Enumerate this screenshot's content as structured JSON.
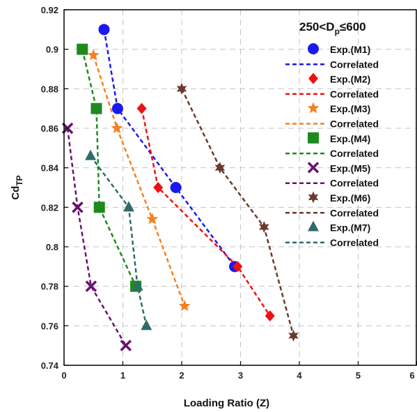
{
  "chart_data": {
    "type": "scatter",
    "xlabel": "Loading Ratio (Z)",
    "ylabel_main": "Cd",
    "ylabel_sub": "TP",
    "xlim": [
      0,
      6
    ],
    "ylim": [
      0.74,
      0.92
    ],
    "x_ticks": [
      "0",
      "1",
      "2",
      "3",
      "4",
      "5",
      "6"
    ],
    "y_ticks": [
      "0.74",
      "0.76",
      "0.78",
      "0.8",
      "0.82",
      "0.84",
      "0.86",
      "0.88",
      "0.9",
      "0.92"
    ],
    "grid": true,
    "legend_position": "top-right",
    "legend_title_main": "250<D",
    "legend_title_sub": "p",
    "legend_title_tail": "≤600",
    "series": [
      {
        "name": "Exp.(M1)",
        "marker": "circle",
        "color": "#1a1aee",
        "points": [
          [
            0.68,
            0.91
          ],
          [
            0.91,
            0.87
          ],
          [
            1.9,
            0.83
          ],
          [
            2.9,
            0.79
          ]
        ],
        "fit_name": "Correlated",
        "fit_color": "#1a1aee",
        "fit": [
          [
            0.68,
            0.91
          ],
          [
            0.91,
            0.87
          ],
          [
            1.9,
            0.83
          ],
          [
            2.9,
            0.79
          ]
        ]
      },
      {
        "name": "Exp.(M2)",
        "marker": "diamond",
        "color": "#ee1111",
        "points": [
          [
            1.32,
            0.87
          ],
          [
            1.6,
            0.83
          ],
          [
            2.95,
            0.79
          ],
          [
            3.5,
            0.765
          ]
        ],
        "fit_name": "Correlated",
        "fit_color": "#ee1111",
        "fit": [
          [
            1.32,
            0.87
          ],
          [
            1.6,
            0.83
          ],
          [
            2.95,
            0.79
          ],
          [
            3.5,
            0.765
          ]
        ]
      },
      {
        "name": "Exp.(M3)",
        "marker": "star",
        "color": "#f58020",
        "points": [
          [
            0.5,
            0.897
          ],
          [
            0.9,
            0.86
          ],
          [
            1.5,
            0.814
          ],
          [
            2.05,
            0.77
          ]
        ],
        "fit_name": "Correlated",
        "fit_color": "#f58020",
        "fit": [
          [
            0.5,
            0.897
          ],
          [
            0.9,
            0.86
          ],
          [
            1.5,
            0.814
          ],
          [
            2.05,
            0.77
          ]
        ]
      },
      {
        "name": "Exp.(M4)",
        "marker": "square",
        "color": "#1e8a1e",
        "points": [
          [
            0.31,
            0.9
          ],
          [
            0.55,
            0.87
          ],
          [
            0.6,
            0.82
          ],
          [
            1.22,
            0.78
          ]
        ],
        "fit_name": "Correlated",
        "fit_color": "#1e8a1e",
        "fit": [
          [
            0.31,
            0.9
          ],
          [
            0.55,
            0.87
          ],
          [
            0.6,
            0.82
          ],
          [
            1.22,
            0.78
          ]
        ]
      },
      {
        "name": "Exp.(M5)",
        "marker": "x",
        "color": "#6a1070",
        "points": [
          [
            0.06,
            0.86
          ],
          [
            0.23,
            0.82
          ],
          [
            0.46,
            0.78
          ],
          [
            1.05,
            0.75
          ]
        ],
        "fit_name": "Correlated",
        "fit_color": "#6a1070",
        "fit": [
          [
            0.06,
            0.86
          ],
          [
            0.23,
            0.82
          ],
          [
            0.46,
            0.78
          ],
          [
            1.05,
            0.75
          ]
        ]
      },
      {
        "name": "Exp.(M6)",
        "marker": "star6",
        "color": "#6b3a2e",
        "points": [
          [
            2.0,
            0.88
          ],
          [
            2.65,
            0.84
          ],
          [
            3.4,
            0.81
          ],
          [
            3.9,
            0.755
          ]
        ],
        "fit_name": "Correlated",
        "fit_color": "#6b3a2e",
        "fit": [
          [
            2.0,
            0.88
          ],
          [
            2.65,
            0.84
          ],
          [
            3.4,
            0.81
          ],
          [
            3.9,
            0.755
          ]
        ]
      },
      {
        "name": "Exp.(M7)",
        "marker": "triangle",
        "color": "#2f6b6b",
        "points": [
          [
            0.45,
            0.846
          ],
          [
            1.1,
            0.82
          ],
          [
            1.25,
            0.78
          ],
          [
            1.4,
            0.76
          ]
        ],
        "fit_name": "Correlated",
        "fit_color": "#2f6b6b",
        "fit": [
          [
            0.45,
            0.846
          ],
          [
            1.1,
            0.82
          ],
          [
            1.25,
            0.78
          ],
          [
            1.4,
            0.76
          ]
        ]
      }
    ]
  }
}
